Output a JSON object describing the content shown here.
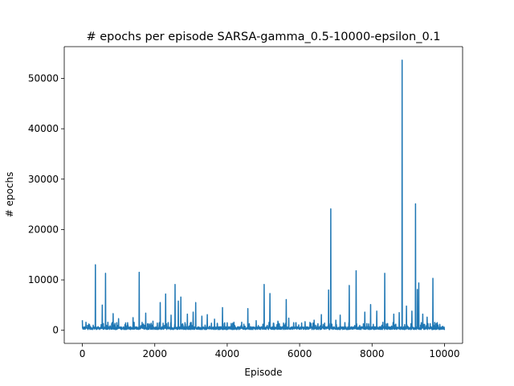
{
  "chart_data": {
    "type": "line",
    "title": "# epochs per episode SARSA-gamma_0.5-10000-epsilon_0.1",
    "xlabel": "Episode",
    "ylabel": "# epochs",
    "xlim": [
      -500,
      10500
    ],
    "ylim": [
      -2600,
      56300
    ],
    "xticks": [
      0,
      2000,
      4000,
      6000,
      8000,
      10000
    ],
    "yticks": [
      0,
      10000,
      20000,
      30000,
      40000,
      50000
    ],
    "grid": false,
    "legend": "none",
    "series_color": "#1f77b4",
    "series": [
      {
        "x_range": [
          0,
          10000
        ],
        "baseline_level": 500,
        "baseline_noise_max": 1000,
        "spikes": [
          {
            "x": 0,
            "y": 2000
          },
          {
            "x": 100,
            "y": 1600
          },
          {
            "x": 200,
            "y": 1100
          },
          {
            "x": 360,
            "y": 13000
          },
          {
            "x": 550,
            "y": 5000
          },
          {
            "x": 640,
            "y": 11300
          },
          {
            "x": 850,
            "y": 3300
          },
          {
            "x": 1000,
            "y": 2300
          },
          {
            "x": 1250,
            "y": 1500
          },
          {
            "x": 1400,
            "y": 2500
          },
          {
            "x": 1570,
            "y": 11500
          },
          {
            "x": 1750,
            "y": 3400
          },
          {
            "x": 1950,
            "y": 1800
          },
          {
            "x": 2150,
            "y": 5500
          },
          {
            "x": 2300,
            "y": 7200
          },
          {
            "x": 2450,
            "y": 3000
          },
          {
            "x": 2560,
            "y": 9100
          },
          {
            "x": 2650,
            "y": 5800
          },
          {
            "x": 2720,
            "y": 6600
          },
          {
            "x": 2900,
            "y": 3200
          },
          {
            "x": 3060,
            "y": 3600
          },
          {
            "x": 3130,
            "y": 5500
          },
          {
            "x": 3300,
            "y": 2800
          },
          {
            "x": 3450,
            "y": 3100
          },
          {
            "x": 3650,
            "y": 2200
          },
          {
            "x": 3870,
            "y": 4500
          },
          {
            "x": 4150,
            "y": 1400
          },
          {
            "x": 4400,
            "y": 1600
          },
          {
            "x": 4570,
            "y": 4300
          },
          {
            "x": 4800,
            "y": 1900
          },
          {
            "x": 5020,
            "y": 9100
          },
          {
            "x": 5180,
            "y": 7300
          },
          {
            "x": 5400,
            "y": 1800
          },
          {
            "x": 5630,
            "y": 6100
          },
          {
            "x": 5700,
            "y": 2400
          },
          {
            "x": 5900,
            "y": 1500
          },
          {
            "x": 6150,
            "y": 1700
          },
          {
            "x": 6400,
            "y": 2000
          },
          {
            "x": 6600,
            "y": 3100
          },
          {
            "x": 6800,
            "y": 8000
          },
          {
            "x": 6860,
            "y": 24100
          },
          {
            "x": 7000,
            "y": 2000
          },
          {
            "x": 7120,
            "y": 3000
          },
          {
            "x": 7370,
            "y": 8900
          },
          {
            "x": 7560,
            "y": 11800
          },
          {
            "x": 7800,
            "y": 3600
          },
          {
            "x": 7960,
            "y": 5100
          },
          {
            "x": 8130,
            "y": 3800
          },
          {
            "x": 8350,
            "y": 11300
          },
          {
            "x": 8600,
            "y": 3200
          },
          {
            "x": 8750,
            "y": 3500
          },
          {
            "x": 8830,
            "y": 53600
          },
          {
            "x": 8950,
            "y": 4800
          },
          {
            "x": 9100,
            "y": 3800
          },
          {
            "x": 9200,
            "y": 25100
          },
          {
            "x": 9250,
            "y": 8100
          },
          {
            "x": 9290,
            "y": 9400
          },
          {
            "x": 9400,
            "y": 3200
          },
          {
            "x": 9520,
            "y": 2600
          },
          {
            "x": 9680,
            "y": 10300
          },
          {
            "x": 9800,
            "y": 1500
          },
          {
            "x": 9950,
            "y": 800
          }
        ]
      }
    ]
  }
}
